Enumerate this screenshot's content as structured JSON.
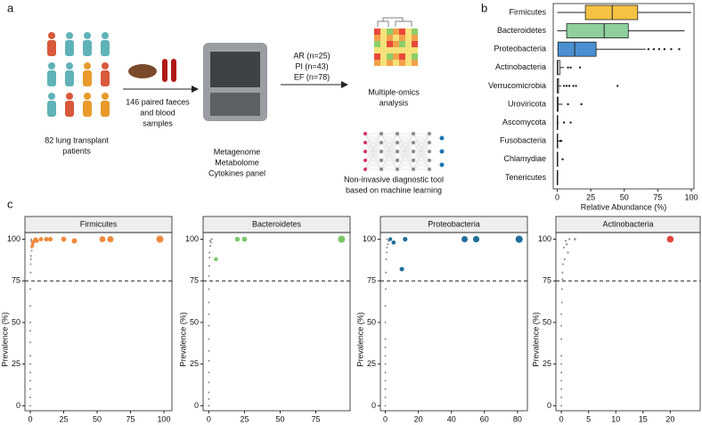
{
  "letters": [
    "a",
    "b",
    "c"
  ],
  "diagram": {
    "patients": [
      "82 lung transplant",
      "patients"
    ],
    "samples": [
      "146 paired faeces",
      "and blood",
      "samples"
    ],
    "assays": [
      "Metagenome",
      "Metabolome",
      "Cytokines panel"
    ],
    "groups": [
      "AR (n=25)",
      "PI (n=43)",
      "EF (n=78)"
    ],
    "omics": [
      "Multiple-omics",
      "analysis"
    ],
    "tool": [
      "Non-invasive diagnostic tool",
      "based on machine learning"
    ]
  },
  "chart_data": [
    {
      "type": "box",
      "xlabel": "Relative Abundance (%)",
      "categories": [
        "Firmicutes",
        "Bacteroidetes",
        "Proteobacteria",
        "Actinobacteria",
        "Verrucomicrobia",
        "Uroviricota",
        "Ascomycota",
        "Fusobacteria",
        "Chlamydiae",
        "Tenericutes"
      ],
      "colors": [
        "#f6c244",
        "#8fcf9e",
        "#4a8fd0",
        "#ffffff",
        "#ffffff",
        "#ffffff",
        "#ffffff",
        "#ffffff",
        "#ffffff",
        "#ffffff"
      ],
      "min": [
        0,
        0,
        0,
        0,
        0,
        0,
        0,
        0,
        0,
        0
      ],
      "q1": [
        21,
        7,
        0.5,
        0,
        0,
        0,
        0,
        0,
        0,
        0
      ],
      "median": [
        41,
        35,
        13,
        0.5,
        0.2,
        0.1,
        0,
        0,
        0,
        0
      ],
      "q3": [
        60,
        53,
        29,
        2,
        1,
        0.8,
        0.3,
        0.2,
        0.1,
        0
      ],
      "max": [
        100,
        95,
        66,
        5,
        3,
        4,
        1,
        1,
        0.5,
        0.3
      ],
      "outliers": [
        [],
        [],
        [
          68,
          72,
          76,
          80,
          85,
          91
        ],
        [
          8,
          10,
          17
        ],
        [
          5,
          7,
          9,
          12,
          14,
          45
        ],
        [
          8,
          18
        ],
        [
          5,
          10
        ],
        [
          2,
          3
        ],
        [
          4
        ],
        []
      ],
      "xlim": [
        -3,
        102
      ],
      "xticks": [
        0,
        25,
        50,
        75,
        100
      ]
    },
    {
      "type": "scatter",
      "title": "Firmicutes",
      "ylabel": "Prevalence (%)",
      "reference_line": 75,
      "xlim": [
        -4,
        106
      ],
      "xticks": [
        0,
        25,
        50,
        75,
        100
      ],
      "ylim": [
        -3,
        104
      ],
      "yticks": [
        0,
        25,
        50,
        75,
        100
      ],
      "series": [
        {
          "color": "#8c8c8c",
          "x": [
            0,
            0,
            0,
            0,
            0,
            0,
            0,
            0,
            0,
            0,
            0,
            0,
            0.2,
            0.3,
            0.5,
            0.5,
            1,
            1,
            1.5,
            2,
            0.5,
            0.8
          ],
          "values": [
            0,
            5,
            10,
            15,
            20,
            25,
            30,
            38,
            45,
            50,
            60,
            70,
            80,
            85,
            88,
            90,
            93,
            95,
            97,
            98,
            99,
            100
          ]
        },
        {
          "color": "#f08a3c",
          "x": [
            1.5,
            2,
            3,
            4,
            5,
            8,
            12,
            15,
            25,
            33,
            54,
            60,
            97
          ],
          "values": [
            96,
            98,
            99,
            100,
            99,
            100,
            100,
            100,
            100,
            99,
            100,
            100,
            100
          ]
        }
      ]
    },
    {
      "type": "scatter",
      "title": "Bacteroidetes",
      "ylabel": "Prevalence (%)",
      "reference_line": 75,
      "xlim": [
        -4,
        99
      ],
      "xticks": [
        0,
        25,
        50,
        75
      ],
      "ylim": [
        -3,
        104
      ],
      "yticks": [
        0,
        25,
        50,
        75,
        100
      ],
      "series": [
        {
          "color": "#8c8c8c",
          "x": [
            0,
            0,
            0,
            0,
            0,
            0,
            0,
            0,
            0,
            0,
            0,
            0,
            0.2,
            0.3,
            0.5,
            0.5,
            1,
            1.5,
            2,
            1
          ],
          "values": [
            0,
            4,
            8,
            14,
            20,
            27,
            33,
            40,
            48,
            55,
            62,
            70,
            78,
            84,
            89,
            92,
            96,
            98,
            100,
            99
          ]
        },
        {
          "color": "#7cc76e",
          "x": [
            5,
            20,
            25,
            93
          ],
          "values": [
            88,
            100,
            100,
            100
          ]
        }
      ]
    },
    {
      "type": "scatter",
      "title": "Proteobacteria",
      "ylabel": "Prevalence (%)",
      "reference_line": 75,
      "xlim": [
        -3,
        86
      ],
      "xticks": [
        0,
        20,
        40,
        60,
        80
      ],
      "ylim": [
        -3,
        104
      ],
      "yticks": [
        0,
        25,
        50,
        75,
        100
      ],
      "series": [
        {
          "color": "#8c8c8c",
          "x": [
            0,
            0,
            0,
            0,
            0,
            0,
            0,
            0,
            0,
            0,
            0,
            0.2,
            0.3,
            0.5,
            0.8,
            1,
            1.5,
            2,
            2.5,
            1
          ],
          "values": [
            0,
            5,
            10,
            15,
            20,
            25,
            30,
            35,
            40,
            50,
            60,
            70,
            80,
            88,
            92,
            95,
            97,
            99,
            100,
            100
          ]
        },
        {
          "color": "#1f6f9a",
          "x": [
            3,
            5,
            10,
            12,
            48,
            55,
            81
          ],
          "values": [
            100,
            98,
            82,
            100,
            100,
            100,
            100
          ]
        }
      ]
    },
    {
      "type": "scatter",
      "title": "Actinobacteria",
      "ylabel": "Prevalence (%)",
      "reference_line": 75,
      "xlim": [
        -1,
        25.5
      ],
      "xticks": [
        0,
        5,
        10,
        15,
        20
      ],
      "ylim": [
        -3,
        104
      ],
      "yticks": [
        0,
        25,
        50,
        75,
        100
      ],
      "series": [
        {
          "color": "#8c8c8c",
          "x": [
            0,
            0,
            0,
            0,
            0,
            0,
            0,
            0,
            0,
            0,
            0.1,
            0.1,
            0.2,
            0.2,
            0.3,
            0.5,
            0.8,
            1,
            1.2,
            1.5,
            2.5,
            0.6
          ],
          "values": [
            0,
            5,
            10,
            15,
            20,
            25,
            30,
            40,
            48,
            55,
            62,
            70,
            76,
            80,
            85,
            95,
            99,
            97,
            92,
            100,
            100,
            88
          ]
        },
        {
          "color": "#e0473c",
          "x": [
            20
          ],
          "values": [
            100
          ]
        }
      ]
    }
  ]
}
